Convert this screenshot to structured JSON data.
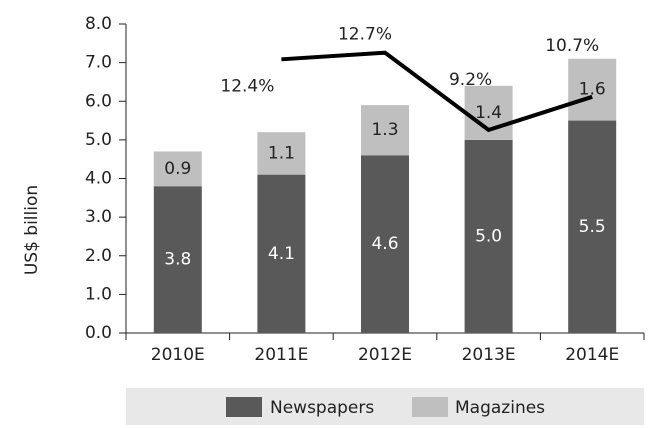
{
  "chart_data": {
    "type": "bar",
    "stacked": true,
    "y_label": "US$ billion",
    "categories": [
      "2010E",
      "2011E",
      "2012E",
      "2013E",
      "2014E"
    ],
    "series": [
      {
        "name": "Newspapers",
        "color": "#595959",
        "label_color": "#ffffff",
        "values": [
          3.8,
          4.1,
          4.6,
          5.0,
          5.5
        ],
        "value_labels": [
          "3.8",
          "4.1",
          "4.6",
          "5.0",
          "5.5"
        ]
      },
      {
        "name": "Magazines",
        "color": "#bfbfbf",
        "label_color": "#222222",
        "values": [
          0.9,
          1.1,
          1.3,
          1.4,
          1.6
        ],
        "value_labels": [
          "0.9",
          "1.1",
          "1.3",
          "1.4",
          "1.6"
        ]
      },
      {
        "type": "line",
        "axis": "y2",
        "color": "#000000",
        "values": [
          null,
          12.4,
          12.7,
          9.2,
          10.7
        ],
        "value_labels": [
          null,
          "12.4%",
          "12.7%",
          "9.2%",
          "10.7%"
        ]
      }
    ],
    "ylim": [
      0,
      8
    ],
    "yticks": [
      {
        "value": 0,
        "label": "0.0"
      },
      {
        "value": 1,
        "label": "1.0"
      },
      {
        "value": 2,
        "label": "2.0"
      },
      {
        "value": 3,
        "label": "3.0"
      },
      {
        "value": 4,
        "label": "4.0"
      },
      {
        "value": 5,
        "label": "5.0"
      },
      {
        "value": 6,
        "label": "6.0"
      },
      {
        "value": 7,
        "label": "7.0"
      },
      {
        "value": 8,
        "label": "8.0"
      }
    ],
    "y2lim": [
      0,
      14
    ],
    "legend": "bottom"
  }
}
